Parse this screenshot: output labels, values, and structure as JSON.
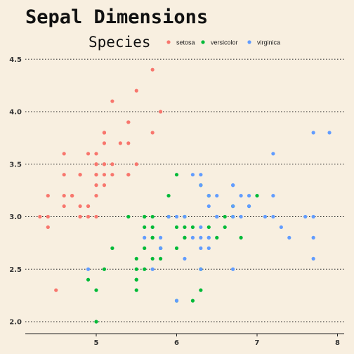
{
  "chart_data": {
    "type": "scatter",
    "title": "Sepal Dimensions",
    "xlabel": "",
    "ylabel": "",
    "xlim": [
      4.2,
      8.1
    ],
    "ylim": [
      1.9,
      4.6
    ],
    "xticks": [
      5,
      6,
      7,
      8
    ],
    "xtick_labels": [
      "5",
      "6",
      "7",
      "8"
    ],
    "yticks": [
      2.0,
      2.5,
      3.0,
      3.5,
      4.0,
      4.5
    ],
    "ytick_labels": [
      "2.0",
      "2.5",
      "3.0",
      "3.5",
      "4.0",
      "4.5"
    ],
    "grid": "horizontal dotted",
    "legend": {
      "title": "Species",
      "placement": "top"
    },
    "series": [
      {
        "name": "setosa",
        "color": "#f8766d",
        "points": [
          [
            5.1,
            3.5
          ],
          [
            4.9,
            3.0
          ],
          [
            4.7,
            3.2
          ],
          [
            4.6,
            3.1
          ],
          [
            5.0,
            3.6
          ],
          [
            5.4,
            3.9
          ],
          [
            4.6,
            3.4
          ],
          [
            5.0,
            3.4
          ],
          [
            4.4,
            2.9
          ],
          [
            4.9,
            3.1
          ],
          [
            5.4,
            3.7
          ],
          [
            4.8,
            3.4
          ],
          [
            4.8,
            3.0
          ],
          [
            4.3,
            3.0
          ],
          [
            5.8,
            4.0
          ],
          [
            5.7,
            4.4
          ],
          [
            5.4,
            3.9
          ],
          [
            5.1,
            3.5
          ],
          [
            5.7,
            3.8
          ],
          [
            5.1,
            3.8
          ],
          [
            5.4,
            3.4
          ],
          [
            5.1,
            3.7
          ],
          [
            4.6,
            3.6
          ],
          [
            5.1,
            3.3
          ],
          [
            4.8,
            3.4
          ],
          [
            5.0,
            3.0
          ],
          [
            5.0,
            3.4
          ],
          [
            5.2,
            3.5
          ],
          [
            5.2,
            3.4
          ],
          [
            4.7,
            3.2
          ],
          [
            4.8,
            3.1
          ],
          [
            5.4,
            3.4
          ],
          [
            5.2,
            4.1
          ],
          [
            5.5,
            4.2
          ],
          [
            4.9,
            3.1
          ],
          [
            5.0,
            3.2
          ],
          [
            5.5,
            3.5
          ],
          [
            4.9,
            3.6
          ],
          [
            4.4,
            3.0
          ],
          [
            5.1,
            3.4
          ],
          [
            5.0,
            3.5
          ],
          [
            4.5,
            2.3
          ],
          [
            4.4,
            3.2
          ],
          [
            5.0,
            3.5
          ],
          [
            5.1,
            3.8
          ],
          [
            4.8,
            3.0
          ],
          [
            5.1,
            3.8
          ],
          [
            4.6,
            3.2
          ],
          [
            5.3,
            3.7
          ],
          [
            5.0,
            3.3
          ]
        ]
      },
      {
        "name": "versicolor",
        "color": "#00ba38",
        "points": [
          [
            7.0,
            3.2
          ],
          [
            6.4,
            3.2
          ],
          [
            6.9,
            3.1
          ],
          [
            5.5,
            2.3
          ],
          [
            6.5,
            2.8
          ],
          [
            5.7,
            2.8
          ],
          [
            6.3,
            3.3
          ],
          [
            4.9,
            2.4
          ],
          [
            6.6,
            2.9
          ],
          [
            5.2,
            2.7
          ],
          [
            5.0,
            2.0
          ],
          [
            5.9,
            3.0
          ],
          [
            6.0,
            2.2
          ],
          [
            6.1,
            2.9
          ],
          [
            5.6,
            2.9
          ],
          [
            6.7,
            3.1
          ],
          [
            5.6,
            3.0
          ],
          [
            5.8,
            2.7
          ],
          [
            6.2,
            2.2
          ],
          [
            5.6,
            2.5
          ],
          [
            5.9,
            3.2
          ],
          [
            6.1,
            2.8
          ],
          [
            6.3,
            2.5
          ],
          [
            6.1,
            2.8
          ],
          [
            6.4,
            2.9
          ],
          [
            6.6,
            3.0
          ],
          [
            6.8,
            2.8
          ],
          [
            6.7,
            3.0
          ],
          [
            6.0,
            2.9
          ],
          [
            5.7,
            2.6
          ],
          [
            5.5,
            2.4
          ],
          [
            5.5,
            2.4
          ],
          [
            5.8,
            2.7
          ],
          [
            6.0,
            2.7
          ],
          [
            5.4,
            3.0
          ],
          [
            6.0,
            3.4
          ],
          [
            6.7,
            3.1
          ],
          [
            6.3,
            2.3
          ],
          [
            5.6,
            3.0
          ],
          [
            5.5,
            2.5
          ],
          [
            5.5,
            2.6
          ],
          [
            6.1,
            3.0
          ],
          [
            5.8,
            2.6
          ],
          [
            5.0,
            2.3
          ],
          [
            5.6,
            2.7
          ],
          [
            5.7,
            3.0
          ],
          [
            5.7,
            2.9
          ],
          [
            6.2,
            2.9
          ],
          [
            5.1,
            2.5
          ],
          [
            5.7,
            2.8
          ]
        ]
      },
      {
        "name": "virginica",
        "color": "#619cff",
        "points": [
          [
            6.3,
            3.3
          ],
          [
            5.8,
            2.7
          ],
          [
            7.1,
            3.0
          ],
          [
            6.3,
            2.9
          ],
          [
            6.5,
            3.0
          ],
          [
            7.6,
            3.0
          ],
          [
            4.9,
            2.5
          ],
          [
            7.3,
            2.9
          ],
          [
            6.7,
            2.5
          ],
          [
            7.2,
            3.6
          ],
          [
            6.5,
            3.2
          ],
          [
            6.4,
            2.7
          ],
          [
            6.8,
            3.0
          ],
          [
            5.7,
            2.5
          ],
          [
            5.8,
            2.8
          ],
          [
            6.4,
            3.2
          ],
          [
            6.5,
            3.0
          ],
          [
            7.7,
            3.8
          ],
          [
            7.7,
            2.6
          ],
          [
            6.0,
            2.2
          ],
          [
            6.9,
            3.2
          ],
          [
            5.6,
            2.8
          ],
          [
            7.7,
            2.8
          ],
          [
            6.3,
            2.7
          ],
          [
            6.7,
            3.3
          ],
          [
            7.2,
            3.2
          ],
          [
            6.2,
            2.8
          ],
          [
            6.1,
            3.0
          ],
          [
            6.4,
            2.8
          ],
          [
            7.2,
            3.0
          ],
          [
            7.4,
            2.8
          ],
          [
            7.9,
            3.8
          ],
          [
            6.4,
            2.8
          ],
          [
            6.3,
            2.8
          ],
          [
            6.1,
            2.6
          ],
          [
            7.7,
            3.0
          ],
          [
            6.3,
            3.4
          ],
          [
            6.4,
            3.1
          ],
          [
            6.0,
            3.0
          ],
          [
            6.9,
            3.1
          ],
          [
            6.7,
            3.1
          ],
          [
            6.9,
            3.1
          ],
          [
            5.8,
            2.7
          ],
          [
            6.8,
            3.2
          ],
          [
            6.7,
            3.3
          ],
          [
            6.7,
            3.0
          ],
          [
            6.3,
            2.5
          ],
          [
            6.5,
            3.0
          ],
          [
            6.2,
            3.4
          ],
          [
            5.9,
            3.0
          ]
        ]
      }
    ]
  }
}
